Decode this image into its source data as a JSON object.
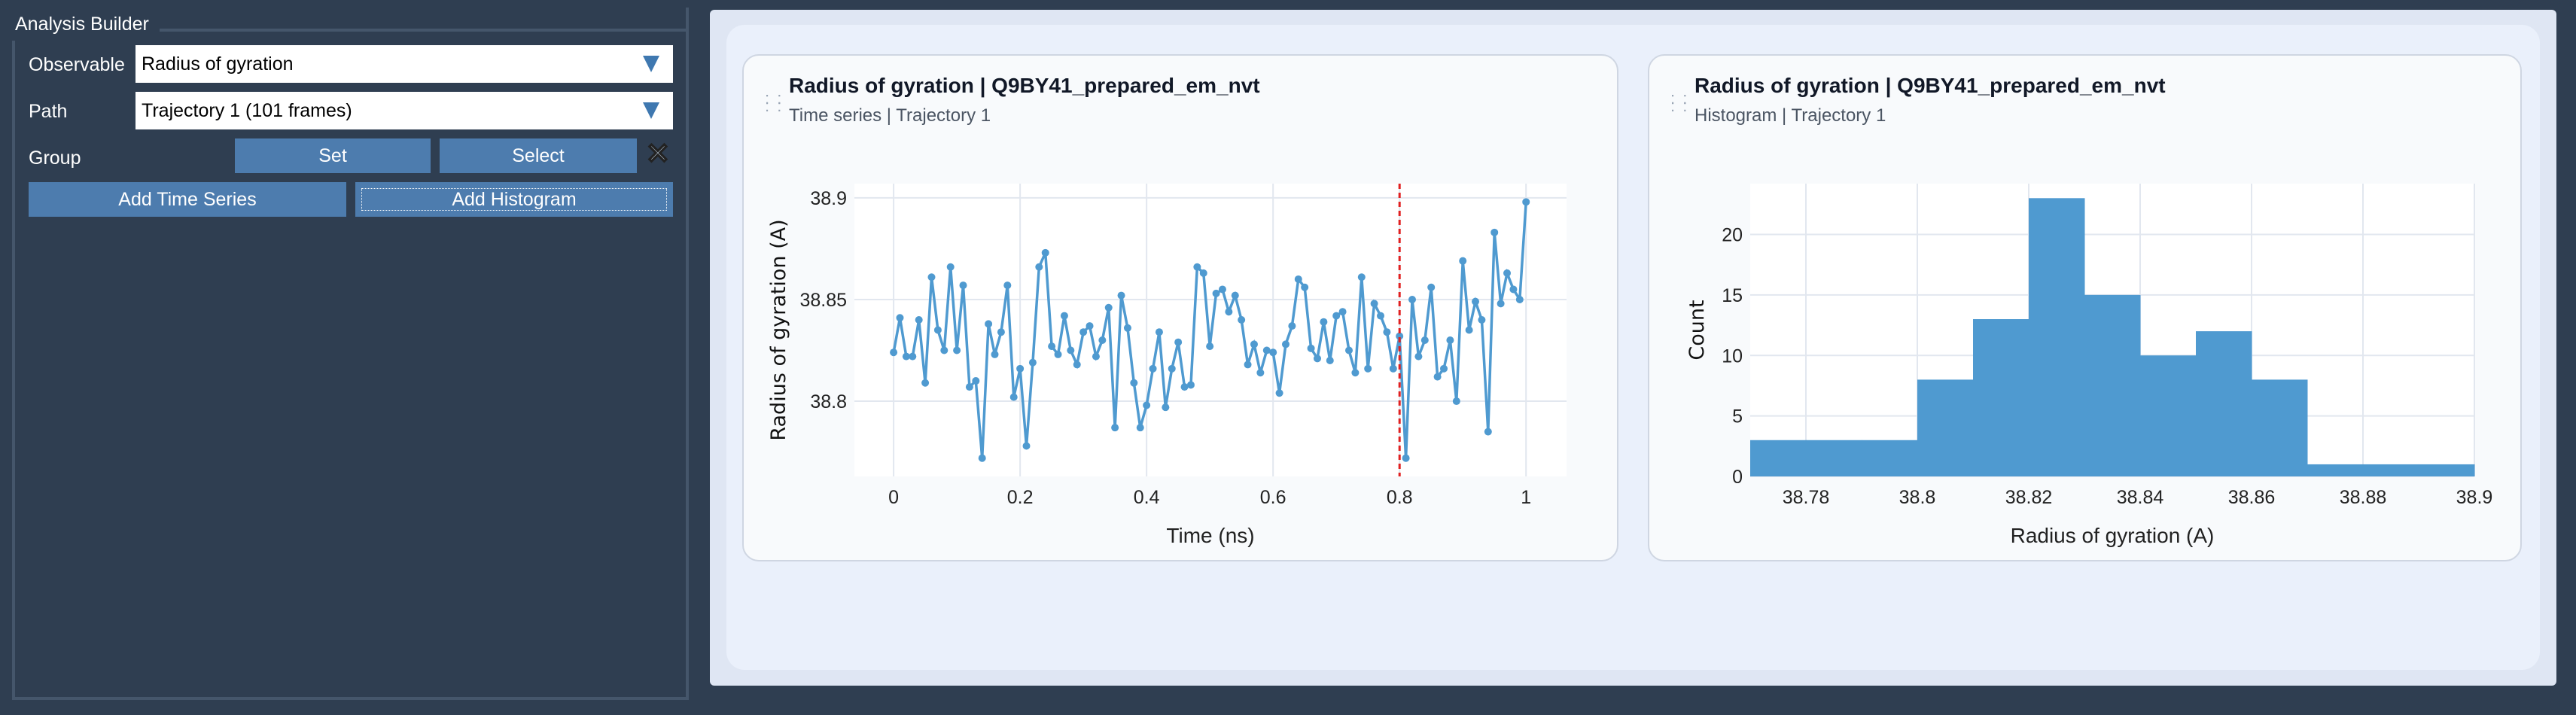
{
  "panel": {
    "title": "Analysis Builder",
    "observable_label": "Observable",
    "observable_value": "Radius of gyration",
    "path_label": "Path",
    "path_value": "Trajectory 1 (101 frames)",
    "group_label": "Group",
    "set_label": "Set",
    "select_label": "Select",
    "clear_icon": "close-x-icon",
    "add_time_series": "Add Time Series",
    "add_histogram": "Add Histogram"
  },
  "colors": {
    "accent": "#4d7cae",
    "series": "#4f9ad0",
    "marker": "#e02020"
  },
  "cards": [
    {
      "title": "Radius of gyration | Q9BY41_prepared_em_nvt",
      "subtitle": "Time series | Trajectory 1"
    },
    {
      "title": "Radius of gyration | Q9BY41_prepared_em_nvt",
      "subtitle": "Histogram | Trajectory 1"
    }
  ],
  "chart_data": [
    {
      "type": "line",
      "xlabel": "Time (ns)",
      "ylabel": "Radius of gyration (A)",
      "xlim": [
        -0.062,
        1.064
      ],
      "ylim": [
        38.763,
        38.907
      ],
      "xticks": [
        "0",
        "0.2",
        "0.4",
        "0.6",
        "0.8",
        "1"
      ],
      "yticks": [
        "38.8",
        "38.85",
        "38.9"
      ],
      "grid": true,
      "marker_x": 0.8,
      "x_start": 0,
      "x_step": 0.01,
      "y": [
        38.824,
        38.841,
        38.822,
        38.822,
        38.84,
        38.809,
        38.861,
        38.835,
        38.825,
        38.866,
        38.825,
        38.857,
        38.807,
        38.81,
        38.772,
        38.838,
        38.823,
        38.834,
        38.857,
        38.802,
        38.816,
        38.778,
        38.819,
        38.866,
        38.873,
        38.827,
        38.823,
        38.842,
        38.825,
        38.818,
        38.834,
        38.837,
        38.822,
        38.83,
        38.846,
        38.787,
        38.852,
        38.836,
        38.809,
        38.787,
        38.798,
        38.816,
        38.834,
        38.797,
        38.816,
        38.829,
        38.807,
        38.808,
        38.866,
        38.863,
        38.827,
        38.853,
        38.855,
        38.844,
        38.852,
        38.84,
        38.818,
        38.828,
        38.814,
        38.825,
        38.824,
        38.804,
        38.828,
        38.837,
        38.86,
        38.856,
        38.826,
        38.821,
        38.839,
        38.82,
        38.842,
        38.844,
        38.825,
        38.814,
        38.861,
        38.816,
        38.848,
        38.842,
        38.834,
        38.816,
        38.832,
        38.772,
        38.85,
        38.822,
        38.83,
        38.856,
        38.812,
        38.816,
        38.83,
        38.8,
        38.869,
        38.835,
        38.849,
        38.84,
        38.785,
        38.883,
        38.848,
        38.863,
        38.855,
        38.85,
        38.898
      ]
    },
    {
      "type": "bar",
      "xlabel": "Radius of gyration (A)",
      "ylabel": "Count",
      "xlim": [
        38.77,
        38.9
      ],
      "ylim": [
        0,
        24.2
      ],
      "xticks": [
        "38.78",
        "38.8",
        "38.82",
        "38.84",
        "38.86",
        "38.88",
        "38.9"
      ],
      "yticks": [
        "0",
        "5",
        "10",
        "15",
        "20"
      ],
      "grid": true,
      "bin_edges": [
        38.77,
        38.78,
        38.79,
        38.8,
        38.81,
        38.82,
        38.83,
        38.84,
        38.85,
        38.86,
        38.87,
        38.88,
        38.89,
        38.9
      ],
      "counts": [
        3,
        3,
        3,
        8,
        13,
        23,
        15,
        10,
        12,
        8,
        1,
        1,
        1
      ]
    }
  ]
}
